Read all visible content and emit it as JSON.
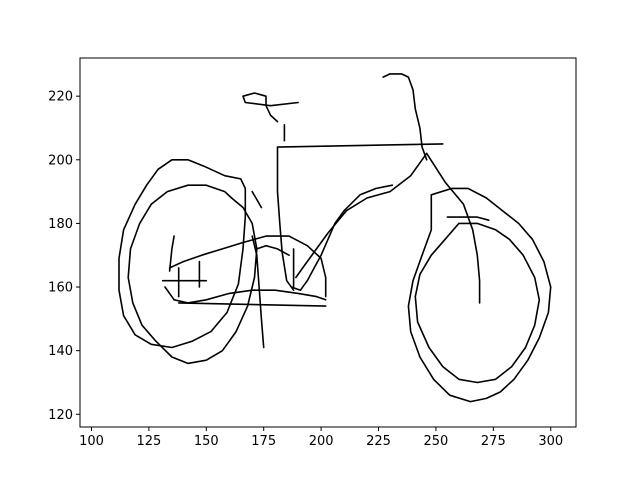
{
  "chart_data": {
    "type": "line",
    "title": "",
    "xlabel": "",
    "ylabel": "",
    "xlim": [
      95,
      311
    ],
    "ylim": [
      116,
      232
    ],
    "x_ticks": [
      100,
      125,
      150,
      175,
      200,
      225,
      250,
      275,
      300
    ],
    "y_ticks": [
      120,
      140,
      160,
      180,
      200,
      220
    ],
    "grid": false,
    "line_color": "#000000",
    "series": [
      {
        "values": [
          [
            167,
            191
          ],
          [
            165,
            194
          ],
          [
            158,
            195
          ],
          [
            149,
            198
          ],
          [
            142,
            200
          ],
          [
            135,
            200
          ],
          [
            129,
            197
          ],
          [
            124,
            192
          ],
          [
            119,
            186
          ],
          [
            114,
            178
          ],
          [
            112,
            169
          ],
          [
            112,
            159
          ],
          [
            114,
            151
          ],
          [
            119,
            145
          ],
          [
            126,
            142
          ],
          [
            135,
            141
          ],
          [
            144,
            143
          ],
          [
            152,
            146
          ],
          [
            159,
            152
          ],
          [
            164,
            161
          ],
          [
            166,
            172
          ],
          [
            167,
            182
          ],
          [
            167,
            191
          ]
        ]
      },
      {
        "values": [
          [
            161,
            188
          ],
          [
            158,
            190
          ],
          [
            150,
            192
          ],
          [
            142,
            192
          ],
          [
            133,
            190
          ],
          [
            126,
            186
          ],
          [
            121,
            180
          ],
          [
            117,
            172
          ],
          [
            116,
            163
          ],
          [
            118,
            155
          ],
          [
            122,
            148
          ],
          [
            128,
            143
          ],
          [
            135,
            138
          ],
          [
            142,
            136
          ],
          [
            150,
            137
          ],
          [
            157,
            140
          ],
          [
            163,
            146
          ],
          [
            168,
            154
          ],
          [
            171,
            163
          ],
          [
            172,
            172
          ],
          [
            170,
            180
          ],
          [
            166,
            185
          ],
          [
            161,
            188
          ]
        ]
      },
      {
        "values": [
          [
            248,
            189
          ],
          [
            257,
            191
          ],
          [
            264,
            191
          ],
          [
            272,
            188
          ],
          [
            279,
            184
          ],
          [
            286,
            180
          ],
          [
            292,
            175
          ],
          [
            297,
            168
          ],
          [
            300,
            160
          ],
          [
            299,
            152
          ],
          [
            295,
            144
          ],
          [
            290,
            137
          ],
          [
            284,
            131
          ],
          [
            278,
            127
          ],
          [
            272,
            125
          ],
          [
            265,
            124
          ],
          [
            256,
            126
          ],
          [
            249,
            131
          ],
          [
            243,
            138
          ],
          [
            239,
            146
          ],
          [
            238,
            154
          ],
          [
            240,
            162
          ],
          [
            244,
            170
          ],
          [
            248,
            178
          ],
          [
            248,
            189
          ]
        ]
      },
      {
        "values": [
          [
            260,
            180
          ],
          [
            268,
            180
          ],
          [
            276,
            178
          ],
          [
            282,
            175
          ],
          [
            288,
            170
          ],
          [
            293,
            163
          ],
          [
            295,
            156
          ],
          [
            293,
            148
          ],
          [
            289,
            141
          ],
          [
            283,
            135
          ],
          [
            276,
            131
          ],
          [
            268,
            130
          ],
          [
            260,
            131
          ],
          [
            253,
            135
          ],
          [
            247,
            141
          ],
          [
            242,
            149
          ],
          [
            241,
            157
          ],
          [
            243,
            164
          ],
          [
            248,
            170
          ],
          [
            254,
            175
          ],
          [
            260,
            180
          ]
        ]
      },
      {
        "values": [
          [
            227,
            226
          ],
          [
            230,
            227
          ],
          [
            235,
            227
          ],
          [
            238,
            226
          ],
          [
            240,
            222
          ],
          [
            241,
            216
          ],
          [
            243,
            210
          ],
          [
            244,
            204
          ],
          [
            246,
            200
          ]
        ]
      },
      {
        "values": [
          [
            181,
            204
          ],
          [
            253,
            205
          ]
        ]
      },
      {
        "values": [
          [
            181,
            204
          ],
          [
            181,
            190
          ],
          [
            182,
            180
          ],
          [
            183,
            171
          ],
          [
            185,
            162
          ],
          [
            188,
            159
          ]
        ]
      },
      {
        "values": [
          [
            246,
            202
          ],
          [
            239,
            195
          ],
          [
            230,
            190
          ],
          [
            220,
            188
          ],
          [
            211,
            184
          ],
          [
            203,
            177
          ],
          [
            197,
            171
          ],
          [
            192,
            166
          ],
          [
            189,
            163
          ]
        ]
      },
      {
        "values": [
          [
            246,
            202
          ],
          [
            254,
            193
          ],
          [
            262,
            186
          ],
          [
            266,
            178
          ],
          [
            268,
            170
          ],
          [
            269,
            162
          ],
          [
            269,
            155
          ]
        ]
      },
      {
        "values": [
          [
            170,
            176
          ],
          [
            172,
            170
          ],
          [
            173,
            160
          ],
          [
            174,
            150
          ],
          [
            175,
            141
          ]
        ]
      },
      {
        "values": [
          [
            174,
            185
          ],
          [
            170,
            190
          ]
        ]
      },
      {
        "values": [
          [
            181,
            212
          ],
          [
            178,
            214
          ],
          [
            176,
            217
          ],
          [
            176,
            220
          ],
          [
            171,
            221
          ],
          [
            166,
            220
          ],
          [
            167,
            218
          ],
          [
            178,
            217
          ],
          [
            190,
            218
          ]
        ]
      },
      {
        "values": [
          [
            184,
            206
          ],
          [
            184,
            211
          ]
        ]
      },
      {
        "values": [
          [
            134,
            166
          ],
          [
            140,
            168
          ],
          [
            148,
            170
          ],
          [
            157,
            172
          ],
          [
            166,
            174
          ],
          [
            176,
            176
          ],
          [
            186,
            176
          ],
          [
            194,
            173
          ],
          [
            200,
            169
          ],
          [
            202,
            163
          ],
          [
            202,
            157
          ]
        ]
      },
      {
        "values": [
          [
            132,
            160
          ],
          [
            136,
            156
          ],
          [
            142,
            155
          ],
          [
            150,
            156
          ],
          [
            160,
            158
          ],
          [
            170,
            159
          ],
          [
            180,
            159
          ],
          [
            190,
            158
          ],
          [
            198,
            157
          ],
          [
            202,
            156
          ]
        ]
      },
      {
        "values": [
          [
            134,
            165
          ],
          [
            135,
            172
          ],
          [
            136,
            176
          ]
        ]
      },
      {
        "values": [
          [
            138,
            166
          ],
          [
            138,
            157
          ]
        ]
      },
      {
        "values": [
          [
            131,
            162
          ],
          [
            150,
            162
          ]
        ]
      },
      {
        "values": [
          [
            138,
            155
          ],
          [
            202,
            154
          ]
        ]
      },
      {
        "values": [
          [
            147,
            168
          ],
          [
            147,
            160
          ]
        ]
      },
      {
        "values": [
          [
            187,
            160
          ],
          [
            191,
            159
          ],
          [
            194,
            162
          ],
          [
            197,
            166
          ],
          [
            200,
            170
          ],
          [
            203,
            175
          ],
          [
            206,
            180
          ],
          [
            210,
            184
          ]
        ]
      },
      {
        "values": [
          [
            210,
            184
          ],
          [
            217,
            189
          ],
          [
            224,
            191
          ],
          [
            231,
            192
          ]
        ]
      },
      {
        "values": [
          [
            255,
            182
          ],
          [
            268,
            182
          ],
          [
            273,
            181
          ]
        ]
      },
      {
        "values": [
          [
            188,
            172
          ],
          [
            188,
            160
          ]
        ]
      },
      {
        "values": [
          [
            172,
            172
          ],
          [
            176,
            173
          ],
          [
            181,
            172
          ],
          [
            186,
            170
          ]
        ]
      }
    ]
  }
}
